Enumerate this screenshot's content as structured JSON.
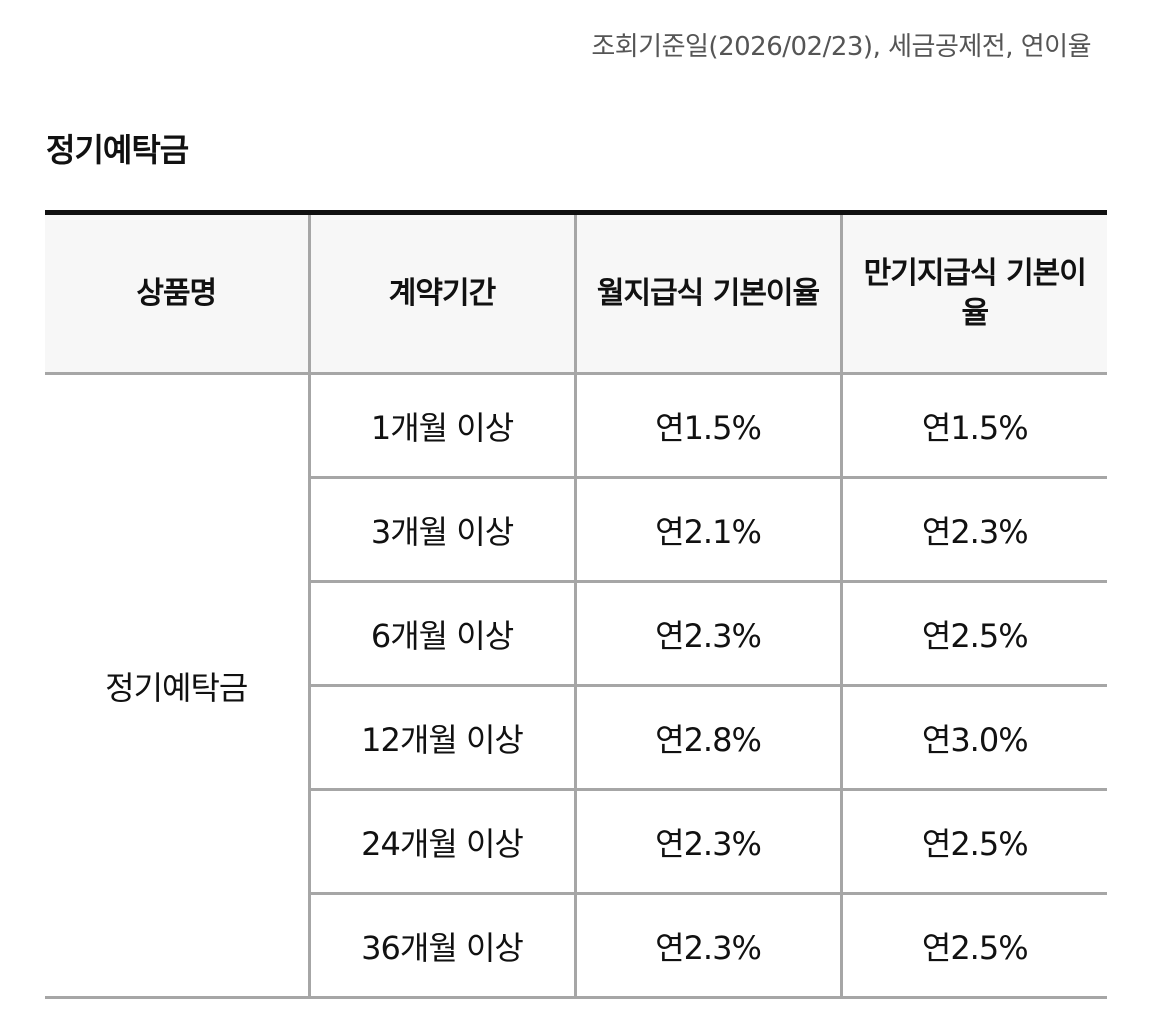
{
  "notice": "조회기준일(2026/02/23), 세금공제전, 연이율",
  "section_title": "정기예탁금",
  "table": {
    "headers": {
      "product": "상품명",
      "period": "계약기간",
      "monthly": "월지급식 기본이율",
      "maturity": "만기지급식 기본이율"
    },
    "product_name": "정기예탁금",
    "rows": [
      {
        "period": "1개월 이상",
        "monthly": "연1.5%",
        "maturity": "연1.5%"
      },
      {
        "period": "3개월 이상",
        "monthly": "연2.1%",
        "maturity": "연2.3%"
      },
      {
        "period": "6개월 이상",
        "monthly": "연2.3%",
        "maturity": "연2.5%"
      },
      {
        "period": "12개월 이상",
        "monthly": "연2.8%",
        "maturity": "연3.0%"
      },
      {
        "period": "24개월 이상",
        "monthly": "연2.3%",
        "maturity": "연2.5%"
      },
      {
        "period": "36개월 이상",
        "monthly": "연2.3%",
        "maturity": "연2.5%"
      }
    ]
  }
}
